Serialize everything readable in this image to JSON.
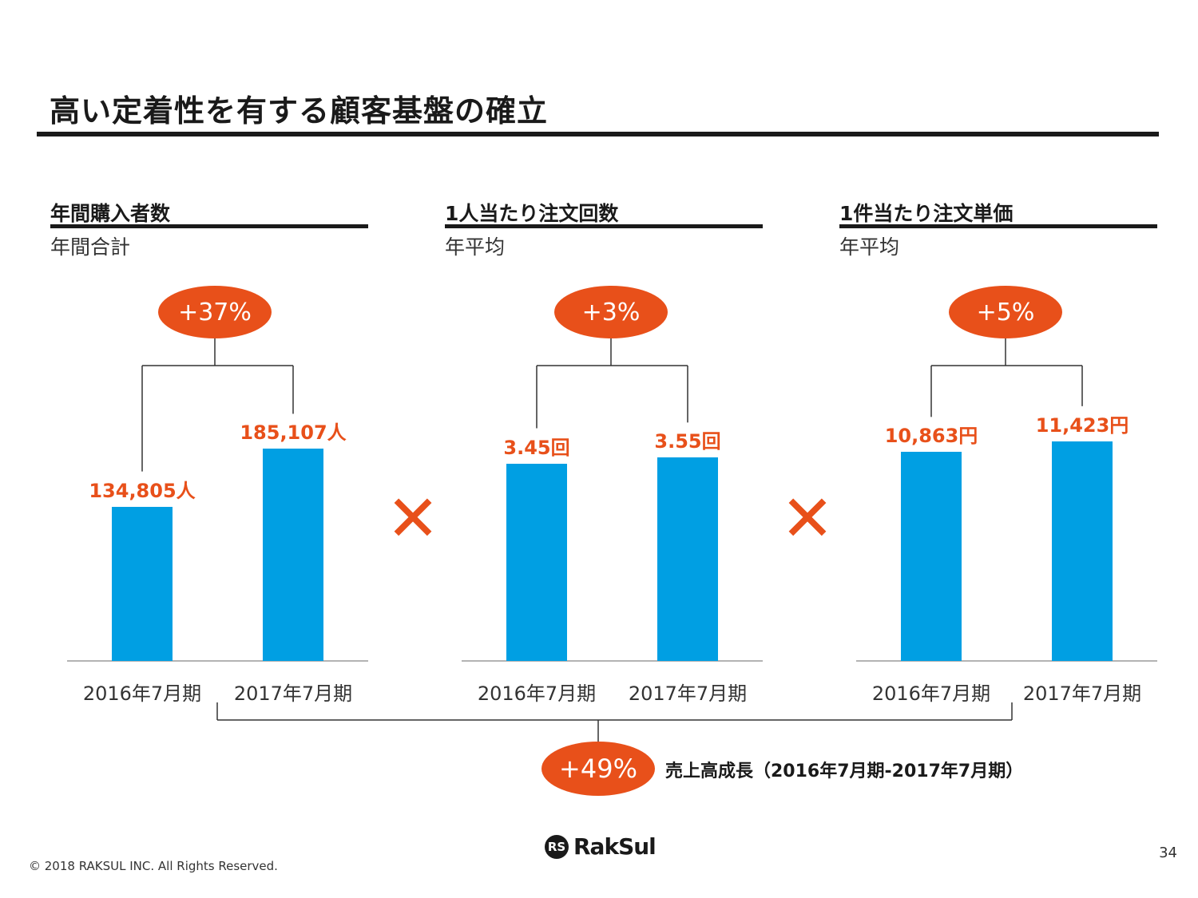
{
  "page": {
    "title": "高い定着性を有する顧客基盤の確立",
    "footer": "© 2018 RAKSUL INC. All Rights Reserved.",
    "page_number": "34",
    "logo_text": "RakSul",
    "logo_mark": "RS"
  },
  "colors": {
    "accent": "#e8501a",
    "bar": "#009fe3",
    "text": "#1a1a1a"
  },
  "multiply_symbol": "✕",
  "summary": {
    "growth": "+49%",
    "label": "売上高成長（2016年7月期-2017年7月期）"
  },
  "chart_data": [
    {
      "type": "bar",
      "title": "年間購入者数",
      "subtitle": "年間合計",
      "growth": "+37%",
      "categories": [
        "2016年7月期",
        "2017年7月期"
      ],
      "values": [
        134805,
        185107
      ],
      "value_labels": [
        "134,805人",
        "185,107人"
      ],
      "ylim": [
        0,
        230000
      ]
    },
    {
      "type": "bar",
      "title": "1人当たり注文回数",
      "subtitle": "年平均",
      "growth": "+3%",
      "categories": [
        "2016年7月期",
        "2017年7月期"
      ],
      "values": [
        3.45,
        3.55
      ],
      "value_labels": [
        "3.45回",
        "3.55回"
      ],
      "ylim": [
        0,
        4.6
      ]
    },
    {
      "type": "bar",
      "title": "1件当たり注文単価",
      "subtitle": "年平均",
      "growth": "+5%",
      "categories": [
        "2016年7月期",
        "2017年7月期"
      ],
      "values": [
        10863,
        11423
      ],
      "value_labels": [
        "10,863円",
        "11,423円"
      ],
      "ylim": [
        0,
        13700
      ]
    }
  ]
}
